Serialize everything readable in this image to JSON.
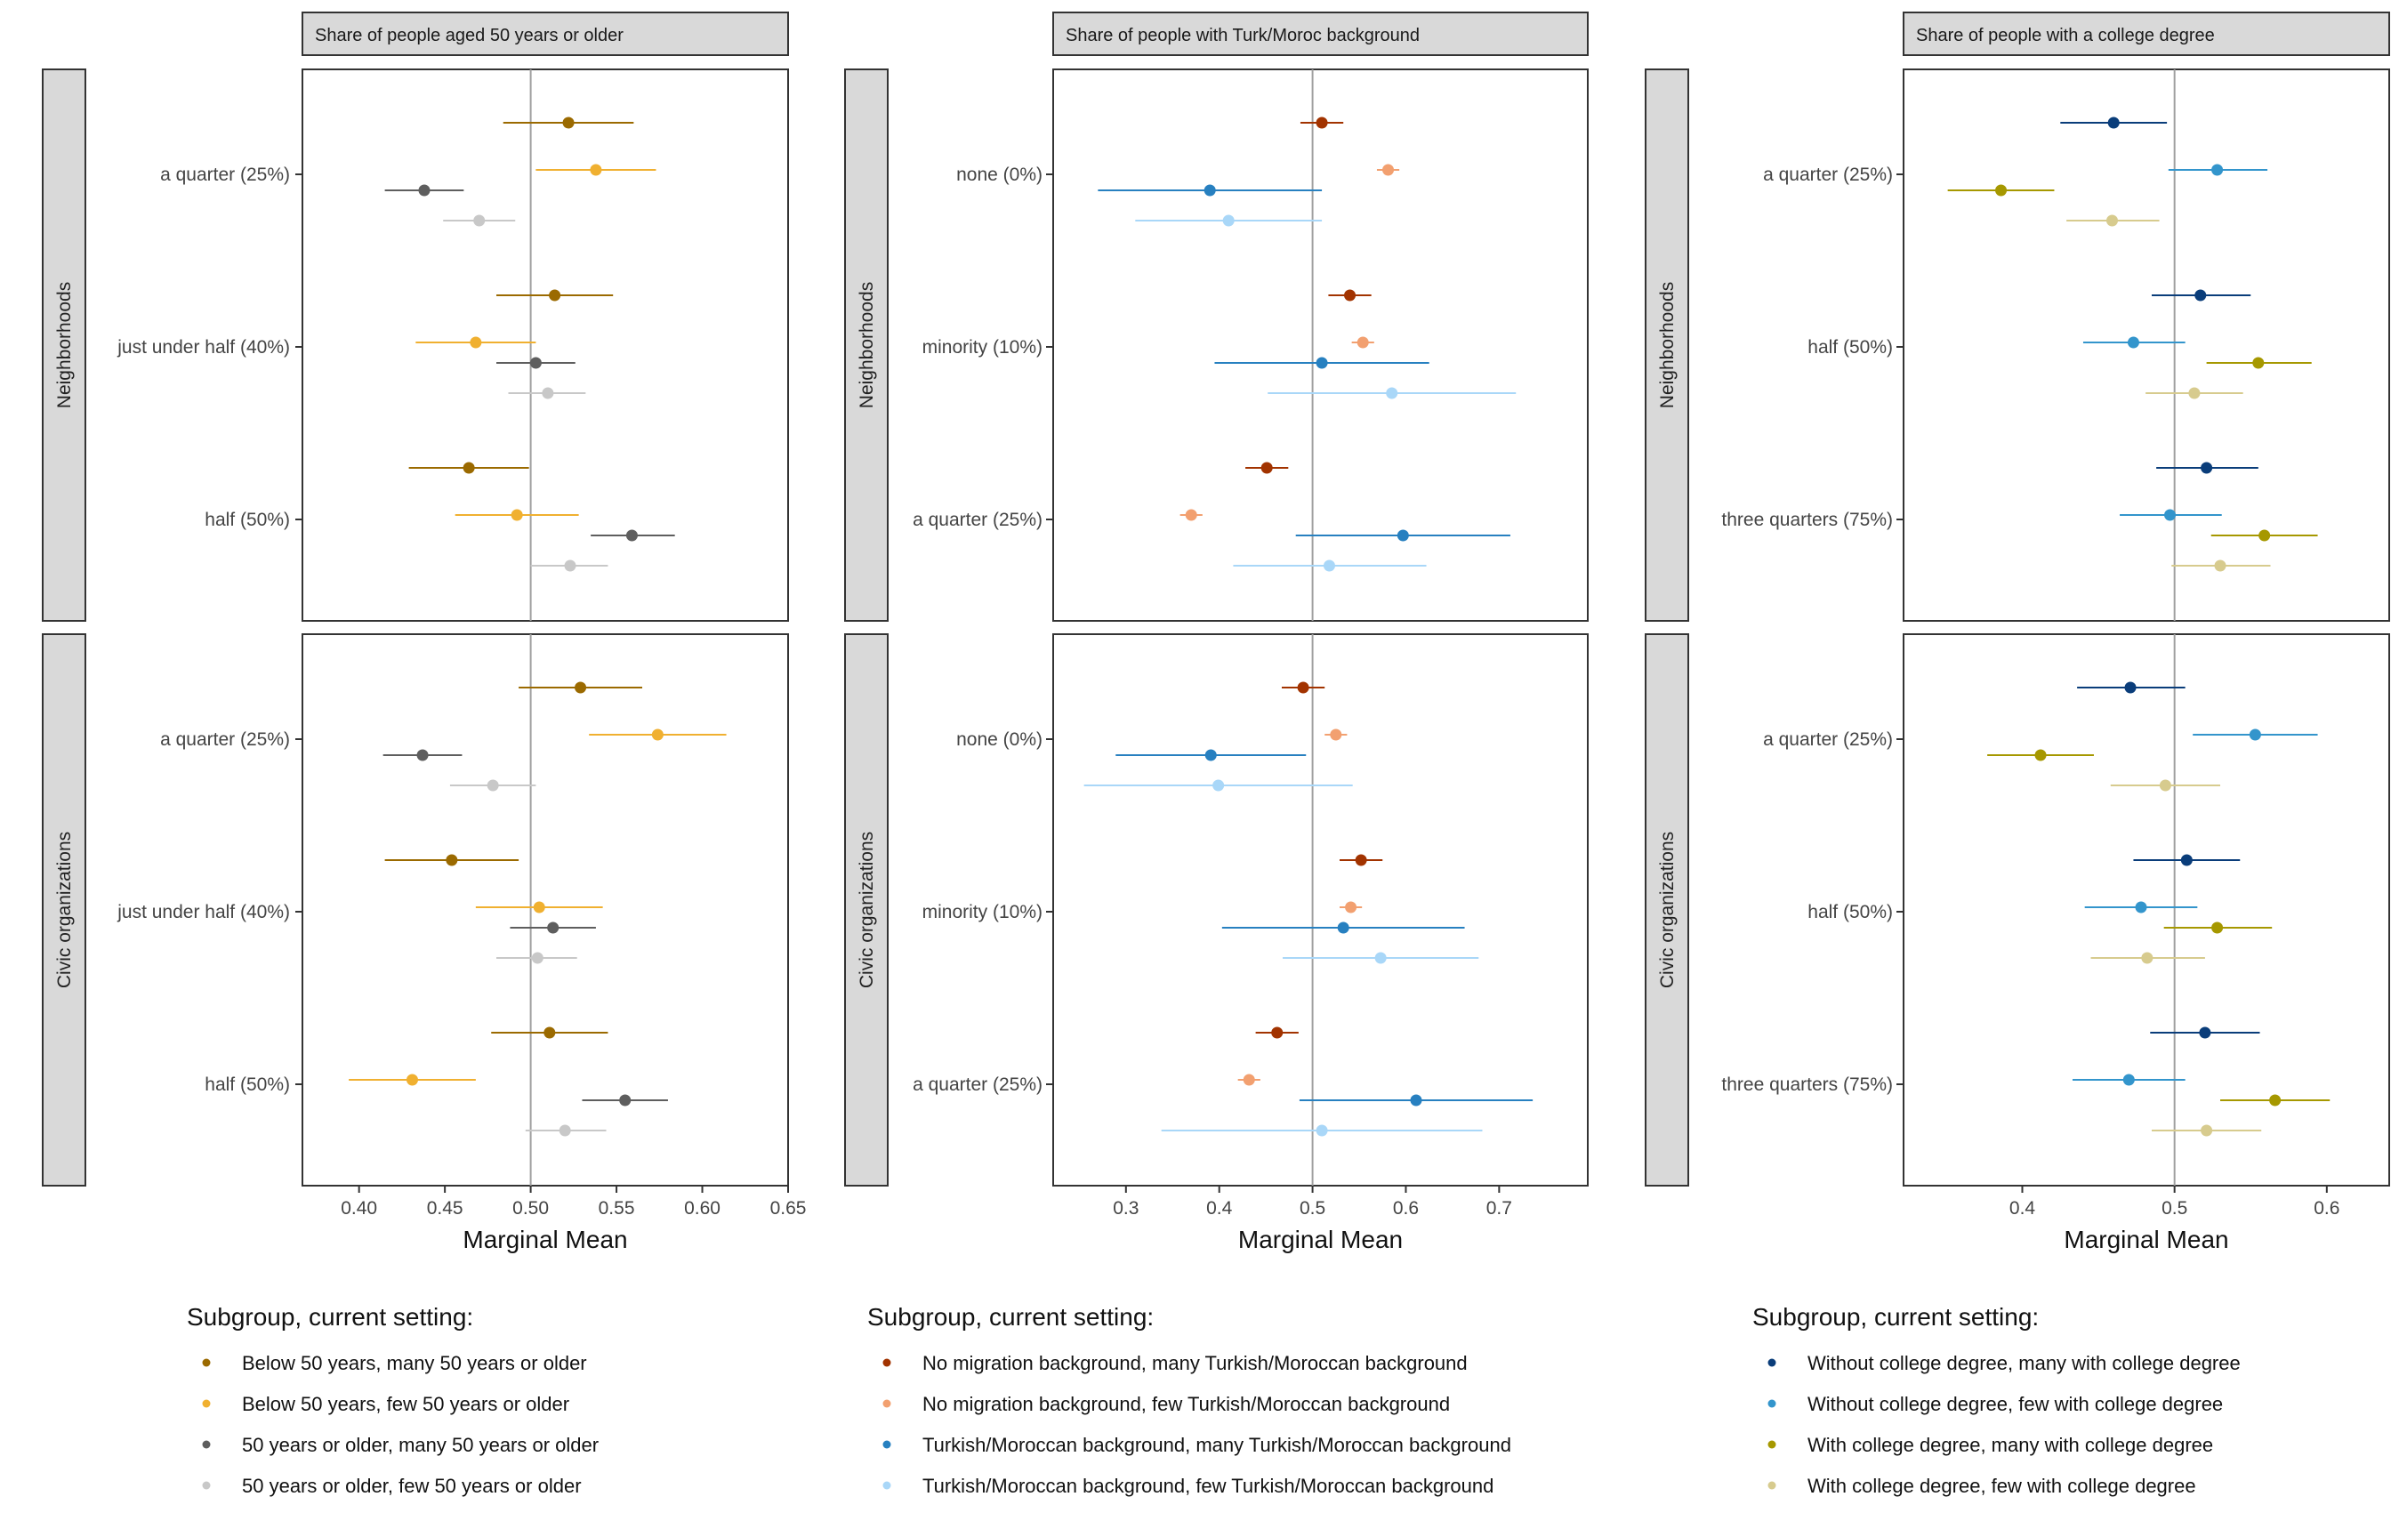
{
  "axis_title": "Marginal Mean",
  "row_strips": [
    "Neighborhoods",
    "Civic organizations"
  ],
  "legend_title": "Subgroup, current setting:",
  "chart_data": [
    {
      "type": "scatter",
      "strip": "Share of people aged 50 years or older",
      "xlabel": "Marginal Mean",
      "xlim": [
        0.367,
        0.65
      ],
      "xticks": [
        0.4,
        0.45,
        0.5,
        0.55,
        0.6,
        0.65
      ],
      "tick_labels": [
        "0.40",
        "0.45",
        "0.50",
        "0.55",
        "0.60",
        "0.65"
      ],
      "reference_x": 0.5,
      "legend_title": "Subgroup, current setting:",
      "series": [
        {
          "name": "Below 50 years, many 50 years or older",
          "color": "#9B6A00"
        },
        {
          "name": "Below 50 years, few 50 years or older",
          "color": "#F0B030"
        },
        {
          "name": "50 years or older, many 50 years or older",
          "color": "#5E5E5E"
        },
        {
          "name": "50 years or older, few 50 years or older",
          "color": "#C8C8C8"
        }
      ],
      "panels": [
        {
          "row": "Neighborhoods",
          "categories": [
            "a quarter (25%)",
            "just under half (40%)",
            "half (50%)"
          ],
          "points": [
            [
              [
                0.522,
                0.484,
                0.56
              ],
              [
                0.538,
                0.503,
                0.573
              ],
              [
                0.438,
                0.415,
                0.461
              ],
              [
                0.47,
                0.449,
                0.491
              ]
            ],
            [
              [
                0.514,
                0.48,
                0.548
              ],
              [
                0.468,
                0.433,
                0.503
              ],
              [
                0.503,
                0.48,
                0.526
              ],
              [
                0.51,
                0.487,
                0.532
              ]
            ],
            [
              [
                0.464,
                0.429,
                0.499
              ],
              [
                0.492,
                0.456,
                0.528
              ],
              [
                0.559,
                0.535,
                0.584
              ],
              [
                0.523,
                0.5,
                0.545
              ]
            ]
          ]
        },
        {
          "row": "Civic organizations",
          "categories": [
            "a quarter (25%)",
            "just under half (40%)",
            "half (50%)"
          ],
          "points": [
            [
              [
                0.529,
                0.493,
                0.565
              ],
              [
                0.574,
                0.534,
                0.614
              ],
              [
                0.437,
                0.414,
                0.46
              ],
              [
                0.478,
                0.453,
                0.503
              ]
            ],
            [
              [
                0.454,
                0.415,
                0.493
              ],
              [
                0.505,
                0.468,
                0.542
              ],
              [
                0.513,
                0.488,
                0.538
              ],
              [
                0.504,
                0.48,
                0.527
              ]
            ],
            [
              [
                0.511,
                0.477,
                0.545
              ],
              [
                0.431,
                0.394,
                0.468
              ],
              [
                0.555,
                0.53,
                0.58
              ],
              [
                0.52,
                0.497,
                0.544
              ]
            ]
          ]
        }
      ]
    },
    {
      "type": "scatter",
      "strip": "Share of people with Turk/Moroc background",
      "xlabel": "Marginal Mean",
      "xlim": [
        0.222,
        0.795
      ],
      "xticks": [
        0.3,
        0.4,
        0.5,
        0.6,
        0.7
      ],
      "tick_labels": [
        "0.3",
        "0.4",
        "0.5",
        "0.6",
        "0.7"
      ],
      "reference_x": 0.5,
      "legend_title": "Subgroup, current setting:",
      "series": [
        {
          "name": "No migration background, many Turkish/Moroccan background",
          "color": "#A23300"
        },
        {
          "name": "No migration background, few Turkish/Moroccan background",
          "color": "#F2A070"
        },
        {
          "name": "Turkish/Moroccan background, many Turkish/Moroccan background",
          "color": "#2780C0"
        },
        {
          "name": "Turkish/Moroccan background, few Turkish/Moroccan background",
          "color": "#A9D7F8"
        }
      ],
      "panels": [
        {
          "row": "Neighborhoods",
          "categories": [
            "none (0%)",
            "minority (10%)",
            "a quarter (25%)"
          ],
          "points": [
            [
              [
                0.51,
                0.487,
                0.533
              ],
              [
                0.581,
                0.569,
                0.593
              ],
              [
                0.39,
                0.27,
                0.51
              ],
              [
                0.41,
                0.31,
                0.51
              ]
            ],
            [
              [
                0.54,
                0.517,
                0.563
              ],
              [
                0.554,
                0.542,
                0.566
              ],
              [
                0.51,
                0.395,
                0.625
              ],
              [
                0.585,
                0.452,
                0.718
              ]
            ],
            [
              [
                0.451,
                0.428,
                0.474
              ],
              [
                0.37,
                0.358,
                0.382
              ],
              [
                0.597,
                0.482,
                0.712
              ],
              [
                0.518,
                0.415,
                0.622
              ]
            ]
          ]
        },
        {
          "row": "Civic organizations",
          "categories": [
            "none (0%)",
            "minority (10%)",
            "a quarter (25%)"
          ],
          "points": [
            [
              [
                0.49,
                0.467,
                0.513
              ],
              [
                0.525,
                0.513,
                0.537
              ],
              [
                0.391,
                0.289,
                0.493
              ],
              [
                0.399,
                0.255,
                0.543
              ]
            ],
            [
              [
                0.552,
                0.529,
                0.575
              ],
              [
                0.541,
                0.529,
                0.553
              ],
              [
                0.533,
                0.403,
                0.663
              ],
              [
                0.573,
                0.468,
                0.678
              ]
            ],
            [
              [
                0.462,
                0.439,
                0.485
              ],
              [
                0.432,
                0.42,
                0.444
              ],
              [
                0.611,
                0.486,
                0.736
              ],
              [
                0.51,
                0.338,
                0.682
              ]
            ]
          ]
        }
      ]
    },
    {
      "type": "scatter",
      "strip": "Share of people with a college degree",
      "xlabel": "Marginal Mean",
      "xlim": [
        0.322,
        0.641
      ],
      "xticks": [
        0.4,
        0.5,
        0.6
      ],
      "tick_labels": [
        "0.4",
        "0.5",
        "0.6"
      ],
      "reference_x": 0.5,
      "legend_title": "Subgroup, current setting:",
      "series": [
        {
          "name": "Without college degree, many with college degree",
          "color": "#0A3D7A"
        },
        {
          "name": "Without college degree, few with college degree",
          "color": "#3395CC"
        },
        {
          "name": "With college degree, many with college degree",
          "color": "#A69800"
        },
        {
          "name": "With college degree, few with college degree",
          "color": "#D7CB8E"
        }
      ],
      "panels": [
        {
          "row": "Neighborhoods",
          "categories": [
            "a quarter (25%)",
            "half (50%)",
            "three quarters (75%)"
          ],
          "points": [
            [
              [
                0.46,
                0.425,
                0.495
              ],
              [
                0.528,
                0.496,
                0.561
              ],
              [
                0.386,
                0.351,
                0.421
              ],
              [
                0.459,
                0.429,
                0.49
              ]
            ],
            [
              [
                0.517,
                0.485,
                0.55
              ],
              [
                0.473,
                0.44,
                0.507
              ],
              [
                0.555,
                0.521,
                0.59
              ],
              [
                0.513,
                0.481,
                0.545
              ]
            ],
            [
              [
                0.521,
                0.488,
                0.555
              ],
              [
                0.497,
                0.464,
                0.531
              ],
              [
                0.559,
                0.524,
                0.594
              ],
              [
                0.53,
                0.498,
                0.563
              ]
            ]
          ]
        },
        {
          "row": "Civic organizations",
          "categories": [
            "a quarter (25%)",
            "half (50%)",
            "three quarters (75%)"
          ],
          "points": [
            [
              [
                0.471,
                0.436,
                0.507
              ],
              [
                0.553,
                0.512,
                0.594
              ],
              [
                0.412,
                0.377,
                0.447
              ],
              [
                0.494,
                0.458,
                0.53
              ]
            ],
            [
              [
                0.508,
                0.473,
                0.543
              ],
              [
                0.478,
                0.441,
                0.515
              ],
              [
                0.528,
                0.493,
                0.564
              ],
              [
                0.482,
                0.445,
                0.52
              ]
            ],
            [
              [
                0.52,
                0.484,
                0.556
              ],
              [
                0.47,
                0.433,
                0.507
              ],
              [
                0.566,
                0.53,
                0.602
              ],
              [
                0.521,
                0.485,
                0.557
              ]
            ]
          ]
        }
      ]
    }
  ]
}
